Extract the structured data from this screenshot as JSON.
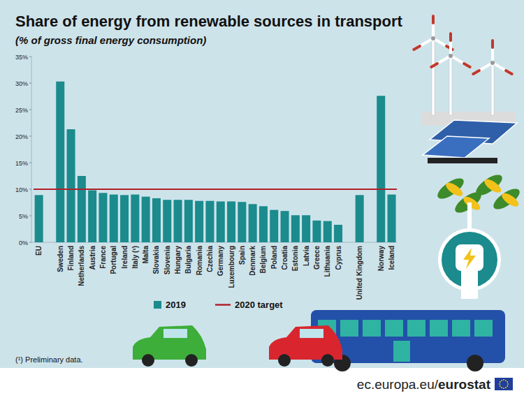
{
  "chart_data": {
    "type": "bar",
    "title": "Share of energy from renewable sources in transport",
    "subtitle": "(% of gross final energy consumption)",
    "categories": [
      "EU",
      null,
      "Sweden",
      "Finland",
      "Netherlands",
      "Austria",
      "France",
      "Portugal",
      "Ireland",
      "Italy (¹)",
      "Malta",
      "Slovakia",
      "Slovenia",
      "Hungary",
      "Bulgaria",
      "Romania",
      "Czechia",
      "Germany",
      "Luxembourg",
      "Spain",
      "Denmark",
      "Belgium",
      "Poland",
      "Croatia",
      "Estonia",
      "Latvia",
      "Greece",
      "Lithuania",
      "Cyprus",
      null,
      "United Kingdom",
      null,
      "Norway",
      "Iceland"
    ],
    "series": [
      {
        "name": "2019",
        "color": "#1b8b8d",
        "values": [
          8.9,
          null,
          30.3,
          21.3,
          12.5,
          9.8,
          9.3,
          9.0,
          8.9,
          9.0,
          8.6,
          8.3,
          8.0,
          8.0,
          8.0,
          7.8,
          7.8,
          7.7,
          7.7,
          7.6,
          7.2,
          6.8,
          6.1,
          5.9,
          5.1,
          5.1,
          4.1,
          4.0,
          3.3,
          null,
          8.9,
          null,
          27.6,
          9.0
        ]
      }
    ],
    "reference_line": {
      "name": "2020 target",
      "value": 10,
      "color": "#b3202a"
    },
    "ylim": [
      0,
      35
    ],
    "yticks": [
      {
        "value": 0,
        "label": "0%"
      },
      {
        "value": 5,
        "label": "5%"
      },
      {
        "value": 10,
        "label": "10%"
      },
      {
        "value": 15,
        "label": "15%"
      },
      {
        "value": 20,
        "label": "20%"
      },
      {
        "value": 25,
        "label": "25%"
      },
      {
        "value": 30,
        "label": "30%"
      },
      {
        "value": 35,
        "label": "35%"
      }
    ],
    "grid": false,
    "legend": "bottom",
    "footnote": "(¹) Preliminary data.",
    "source": {
      "prefix": "ec.europa.eu/",
      "brand": "eurostat"
    }
  }
}
